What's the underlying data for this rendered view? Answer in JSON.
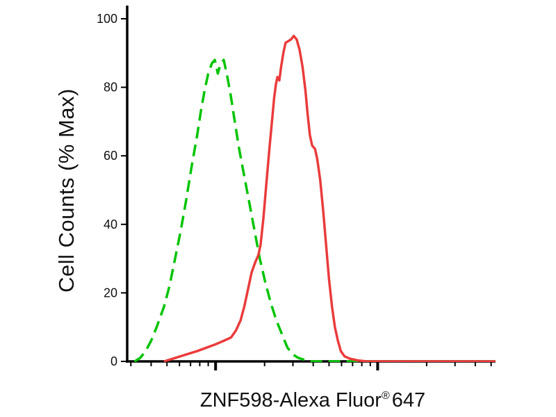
{
  "figure": {
    "ylabel": "Cell Counts (% Max)",
    "xlabel_main": "ZNF598-Alexa Fluor",
    "xlabel_sup": "®",
    "xlabel_suffix": "647"
  },
  "chart_data": {
    "type": "line",
    "title": "",
    "xlabel": "ZNF598-Alexa Fluor® 647",
    "ylabel": "Cell Counts (% Max)",
    "x_axis": {
      "scale": "log",
      "tick_labels_shown": false
    },
    "ylim": [
      0,
      100
    ],
    "y_ticks": [
      0,
      20,
      40,
      60,
      80,
      100
    ],
    "x_ticks": [
      {
        "pos": 0.01,
        "major": false
      },
      {
        "pos": 0.065,
        "major": false
      },
      {
        "pos": 0.108,
        "major": false
      },
      {
        "pos": 0.142,
        "major": false
      },
      {
        "pos": 0.172,
        "major": false
      },
      {
        "pos": 0.197,
        "major": false
      },
      {
        "pos": 0.22,
        "major": false
      },
      {
        "pos": 0.24,
        "major": true
      },
      {
        "pos": 0.373,
        "major": false
      },
      {
        "pos": 0.45,
        "major": false
      },
      {
        "pos": 0.505,
        "major": false
      },
      {
        "pos": 0.548,
        "major": false
      },
      {
        "pos": 0.582,
        "major": false
      },
      {
        "pos": 0.612,
        "major": false
      },
      {
        "pos": 0.637,
        "major": false
      },
      {
        "pos": 0.66,
        "major": false
      },
      {
        "pos": 0.68,
        "major": true
      },
      {
        "pos": 0.813,
        "major": false
      },
      {
        "pos": 0.89,
        "major": false
      },
      {
        "pos": 0.945,
        "major": false
      },
      {
        "pos": 0.988,
        "major": false
      }
    ],
    "axis_color": "#000000",
    "series": [
      {
        "name": "green-dashed",
        "color": "#00c400",
        "style": "dashed",
        "peak_percent": 88,
        "points": [
          [
            0.02,
            0
          ],
          [
            0.035,
            1
          ],
          [
            0.05,
            3
          ],
          [
            0.065,
            6
          ],
          [
            0.08,
            10
          ],
          [
            0.1,
            16
          ],
          [
            0.115,
            22
          ],
          [
            0.13,
            30
          ],
          [
            0.145,
            38
          ],
          [
            0.16,
            47
          ],
          [
            0.175,
            57
          ],
          [
            0.19,
            66
          ],
          [
            0.2,
            73
          ],
          [
            0.21,
            79
          ],
          [
            0.22,
            84
          ],
          [
            0.23,
            87
          ],
          [
            0.238,
            88
          ],
          [
            0.246,
            84
          ],
          [
            0.254,
            87
          ],
          [
            0.262,
            88
          ],
          [
            0.272,
            83
          ],
          [
            0.282,
            77
          ],
          [
            0.292,
            70
          ],
          [
            0.304,
            62
          ],
          [
            0.318,
            54
          ],
          [
            0.332,
            46
          ],
          [
            0.346,
            38
          ],
          [
            0.36,
            30
          ],
          [
            0.375,
            23
          ],
          [
            0.39,
            17
          ],
          [
            0.405,
            12
          ],
          [
            0.42,
            8
          ],
          [
            0.435,
            4
          ],
          [
            0.45,
            2
          ],
          [
            0.465,
            1
          ],
          [
            0.48,
            0.5
          ],
          [
            0.5,
            0
          ],
          [
            0.7,
            0
          ],
          [
            1.0,
            0
          ]
        ]
      },
      {
        "name": "red-solid",
        "color": "#ea3b3b",
        "style": "solid",
        "peak_percent": 95,
        "points": [
          [
            0.1,
            0
          ],
          [
            0.13,
            1
          ],
          [
            0.16,
            2
          ],
          [
            0.19,
            3
          ],
          [
            0.215,
            4
          ],
          [
            0.24,
            5
          ],
          [
            0.262,
            6
          ],
          [
            0.282,
            7
          ],
          [
            0.295,
            9
          ],
          [
            0.308,
            12
          ],
          [
            0.318,
            16
          ],
          [
            0.328,
            21
          ],
          [
            0.338,
            26
          ],
          [
            0.348,
            29
          ],
          [
            0.356,
            31
          ],
          [
            0.362,
            34
          ],
          [
            0.37,
            42
          ],
          [
            0.378,
            52
          ],
          [
            0.386,
            62
          ],
          [
            0.393,
            70
          ],
          [
            0.399,
            77
          ],
          [
            0.404,
            81
          ],
          [
            0.408,
            83
          ],
          [
            0.413,
            82
          ],
          [
            0.418,
            86
          ],
          [
            0.424,
            90
          ],
          [
            0.43,
            93
          ],
          [
            0.438,
            93.5
          ],
          [
            0.445,
            94
          ],
          [
            0.452,
            95
          ],
          [
            0.46,
            94
          ],
          [
            0.468,
            91
          ],
          [
            0.476,
            86
          ],
          [
            0.484,
            79
          ],
          [
            0.49,
            72
          ],
          [
            0.496,
            66
          ],
          [
            0.502,
            63
          ],
          [
            0.51,
            62
          ],
          [
            0.516,
            59
          ],
          [
            0.524,
            53
          ],
          [
            0.532,
            44
          ],
          [
            0.54,
            34
          ],
          [
            0.548,
            24
          ],
          [
            0.556,
            16
          ],
          [
            0.564,
            10
          ],
          [
            0.572,
            6
          ],
          [
            0.58,
            3
          ],
          [
            0.59,
            1.5
          ],
          [
            0.605,
            0.8
          ],
          [
            0.625,
            0.3
          ],
          [
            0.65,
            0
          ],
          [
            1.0,
            0
          ]
        ]
      }
    ]
  }
}
